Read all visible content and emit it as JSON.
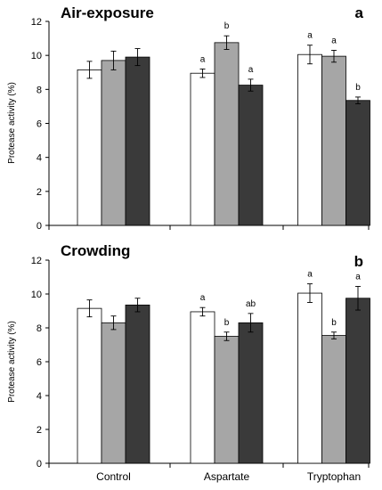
{
  "chart_data": [
    {
      "type": "bar",
      "title": "Air-exposure",
      "panel_letter": "a",
      "ylabel": "Protease activity (%)",
      "ylim": [
        0,
        12
      ],
      "yticks": [
        0,
        2,
        4,
        6,
        8,
        10,
        12
      ],
      "categories": [
        "Control",
        "Aspartate",
        "Tryptophan"
      ],
      "show_category_labels": false,
      "series_colors": [
        "#ffffff",
        "#a6a6a6",
        "#3a3a3a"
      ],
      "series": [
        {
          "values": [
            9.15,
            8.95,
            10.05
          ],
          "errors": [
            0.5,
            0.25,
            0.55
          ],
          "labels": [
            "",
            "a",
            "a"
          ]
        },
        {
          "values": [
            9.7,
            10.75,
            9.95
          ],
          "errors": [
            0.55,
            0.4,
            0.35
          ],
          "labels": [
            "",
            "b",
            "a"
          ]
        },
        {
          "values": [
            9.9,
            8.25,
            7.35
          ],
          "errors": [
            0.5,
            0.35,
            0.2
          ],
          "labels": [
            "",
            "a",
            "b"
          ]
        }
      ]
    },
    {
      "type": "bar",
      "title": "Crowding",
      "panel_letter": "b",
      "ylabel": "Protease activity (%)",
      "ylim": [
        0,
        12
      ],
      "yticks": [
        0,
        2,
        4,
        6,
        8,
        10,
        12
      ],
      "categories": [
        "Control",
        "Aspartate",
        "Tryptophan"
      ],
      "show_category_labels": true,
      "series_colors": [
        "#ffffff",
        "#a6a6a6",
        "#3a3a3a"
      ],
      "series": [
        {
          "values": [
            9.15,
            8.95,
            10.05
          ],
          "errors": [
            0.5,
            0.25,
            0.55
          ],
          "labels": [
            "",
            "a",
            "a"
          ]
        },
        {
          "values": [
            8.3,
            7.5,
            7.55
          ],
          "errors": [
            0.4,
            0.25,
            0.2
          ],
          "labels": [
            "",
            "b",
            "b"
          ]
        },
        {
          "values": [
            9.35,
            8.3,
            9.75
          ],
          "errors": [
            0.4,
            0.55,
            0.7
          ],
          "labels": [
            "",
            "ab",
            "a"
          ]
        }
      ]
    }
  ]
}
